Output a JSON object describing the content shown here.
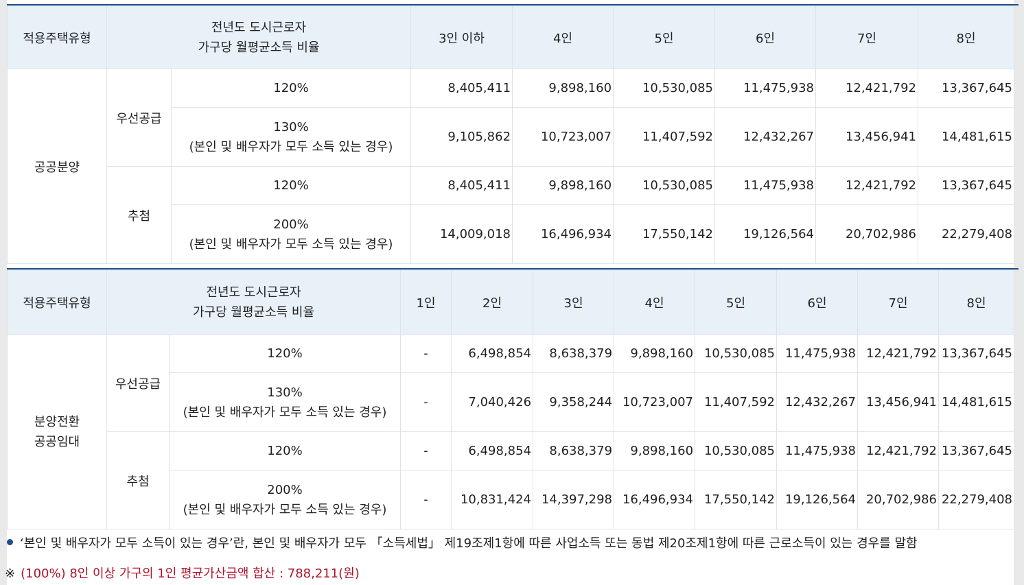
{
  "table1": {
    "header": {
      "type": "적용주택유형",
      "ratio_line1": "전년도 도시근로자",
      "ratio_line2": "가구당 월평균소득 비율",
      "cols": [
        "3인 이하",
        "4인",
        "5인",
        "6인",
        "7인",
        "8인"
      ]
    },
    "group": "공공분양",
    "sections": [
      {
        "name": "우선공급",
        "rows": [
          {
            "ratio": "120%",
            "ratio_sub": "",
            "values": [
              "8,405,411",
              "9,898,160",
              "10,530,085",
              "11,475,938",
              "12,421,792",
              "13,367,645"
            ]
          },
          {
            "ratio": "130%",
            "ratio_sub": "(본인 및 배우자가 모두 소득 있는 경우)",
            "values": [
              "9,105,862",
              "10,723,007",
              "11,407,592",
              "12,432,267",
              "13,456,941",
              "14,481,615"
            ]
          }
        ]
      },
      {
        "name": "추첨",
        "rows": [
          {
            "ratio": "120%",
            "ratio_sub": "",
            "values": [
              "8,405,411",
              "9,898,160",
              "10,530,085",
              "11,475,938",
              "12,421,792",
              "13,367,645"
            ]
          },
          {
            "ratio": "200%",
            "ratio_sub": "(본인 및 배우자가 모두 소득 있는 경우)",
            "values": [
              "14,009,018",
              "16,496,934",
              "17,550,142",
              "19,126,564",
              "20,702,986",
              "22,279,408"
            ]
          }
        ]
      }
    ]
  },
  "table2": {
    "header": {
      "type": "적용주택유형",
      "ratio_line1": "전년도 도시근로자",
      "ratio_line2": "가구당 월평균소득 비율",
      "cols": [
        "1인",
        "2인",
        "3인",
        "4인",
        "5인",
        "6인",
        "7인",
        "8인"
      ]
    },
    "group_line1": "분양전환",
    "group_line2": "공공임대",
    "sections": [
      {
        "name": "우선공급",
        "rows": [
          {
            "ratio": "120%",
            "ratio_sub": "",
            "values": [
              "-",
              "6,498,854",
              "8,638,379",
              "9,898,160",
              "10,530,085",
              "11,475,938",
              "12,421,792",
              "13,367,645"
            ]
          },
          {
            "ratio": "130%",
            "ratio_sub": "(본인 및 배우자가 모두 소득 있는 경우)",
            "values": [
              "-",
              "7,040,426",
              "9,358,244",
              "10,723,007",
              "11,407,592",
              "12,432,267",
              "13,456,941",
              "14,481,615"
            ]
          }
        ]
      },
      {
        "name": "추첨",
        "rows": [
          {
            "ratio": "120%",
            "ratio_sub": "",
            "values": [
              "-",
              "6,498,854",
              "8,638,379",
              "9,898,160",
              "10,530,085",
              "11,475,938",
              "12,421,792",
              "13,367,645"
            ]
          },
          {
            "ratio": "200%",
            "ratio_sub": "(본인 및 배우자가 모두 소득 있는 경우)",
            "values": [
              "-",
              "10,831,424",
              "14,397,298",
              "16,496,934",
              "17,550,142",
              "19,126,564",
              "20,702,986",
              "22,279,408"
            ]
          }
        ]
      }
    ]
  },
  "notes": {
    "note1": "‘본인 및 배우자가 모두 소득이 있는 경우’란, 본인 및 배우자가 모두 「소득세법」 제19조제1항에 따른 사업소득 또는 동법 제20조제1항에 따른 근로소득이 있는 경우를 말함",
    "note2_mark": "※",
    "note2": "(100%) 8인 이상 가구의 1인 평균가산금액 합산 : 788,211(원)",
    "accent_color": "#b0122a",
    "bullet_color": "#1f4e8c"
  }
}
